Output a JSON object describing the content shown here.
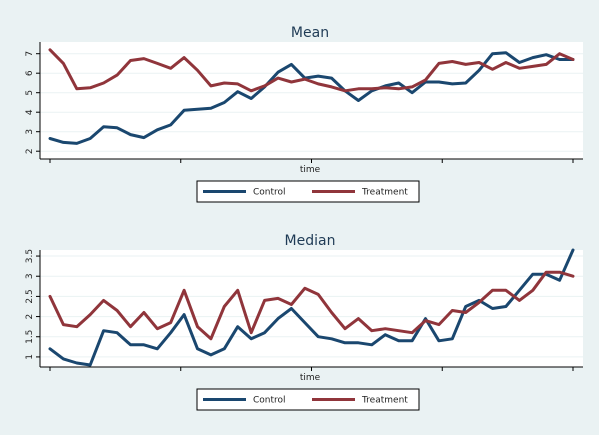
{
  "chart_data": [
    {
      "type": "line",
      "title": "Mean",
      "xlabel": "time",
      "ylabel": "",
      "ylim": [
        1.6,
        7.6
      ],
      "yticks": [
        "2",
        "3",
        "4",
        "5",
        "6",
        "7"
      ],
      "ytick_values": [
        2,
        3,
        4,
        5,
        6,
        7
      ],
      "grid": true,
      "legend": "bottom",
      "series": [
        {
          "name": "Control",
          "color": "#1a476f",
          "values": [
            2.65,
            2.45,
            2.4,
            2.65,
            3.25,
            3.2,
            2.85,
            2.7,
            3.1,
            3.35,
            4.1,
            4.15,
            4.2,
            4.5,
            5.05,
            4.7,
            5.3,
            6.05,
            6.45,
            5.75,
            5.85,
            5.75,
            5.1,
            4.6,
            5.1,
            5.35,
            5.5,
            5.0,
            5.55,
            5.55,
            5.45,
            5.5,
            6.15,
            7.0,
            7.05,
            6.55,
            6.8,
            6.95,
            6.7,
            6.7
          ]
        },
        {
          "name": "Treatment",
          "color": "#90353b",
          "values": [
            7.2,
            6.5,
            5.2,
            5.25,
            5.5,
            5.9,
            6.65,
            6.75,
            6.5,
            6.25,
            6.8,
            6.15,
            5.35,
            5.5,
            5.45,
            5.1,
            5.35,
            5.75,
            5.55,
            5.7,
            5.45,
            5.3,
            5.1,
            5.2,
            5.2,
            5.25,
            5.2,
            5.3,
            5.65,
            6.5,
            6.6,
            6.45,
            6.55,
            6.2,
            6.55,
            6.25,
            6.35,
            6.45,
            7.0,
            6.7
          ]
        }
      ]
    },
    {
      "type": "line",
      "title": "Median",
      "xlabel": "time",
      "ylabel": "",
      "ylim": [
        0.75,
        3.65
      ],
      "yticks": [
        "1",
        "1.5",
        "2",
        "2.5",
        "3",
        "3.5"
      ],
      "ytick_values": [
        1,
        1.5,
        2,
        2.5,
        3,
        3.5
      ],
      "grid": true,
      "legend": "bottom",
      "series": [
        {
          "name": "Control",
          "color": "#1a476f",
          "values": [
            1.2,
            0.95,
            0.85,
            0.8,
            1.65,
            1.6,
            1.3,
            1.3,
            1.2,
            1.6,
            2.05,
            1.2,
            1.05,
            1.2,
            1.75,
            1.45,
            1.6,
            1.95,
            2.2,
            1.85,
            1.5,
            1.45,
            1.35,
            1.35,
            1.3,
            1.55,
            1.4,
            1.4,
            1.95,
            1.4,
            1.45,
            2.25,
            2.4,
            2.2,
            2.25,
            2.65,
            3.05,
            3.05,
            2.9,
            3.65
          ]
        },
        {
          "name": "Treatment",
          "color": "#90353b",
          "values": [
            2.5,
            1.8,
            1.75,
            2.05,
            2.4,
            2.15,
            1.75,
            2.1,
            1.7,
            1.85,
            2.65,
            1.75,
            1.45,
            2.25,
            2.65,
            1.6,
            2.4,
            2.45,
            2.3,
            2.7,
            2.55,
            2.1,
            1.7,
            1.95,
            1.65,
            1.7,
            1.65,
            1.6,
            1.9,
            1.8,
            2.15,
            2.1,
            2.35,
            2.65,
            2.65,
            2.4,
            2.65,
            3.1,
            3.1,
            3.0
          ]
        }
      ]
    }
  ]
}
